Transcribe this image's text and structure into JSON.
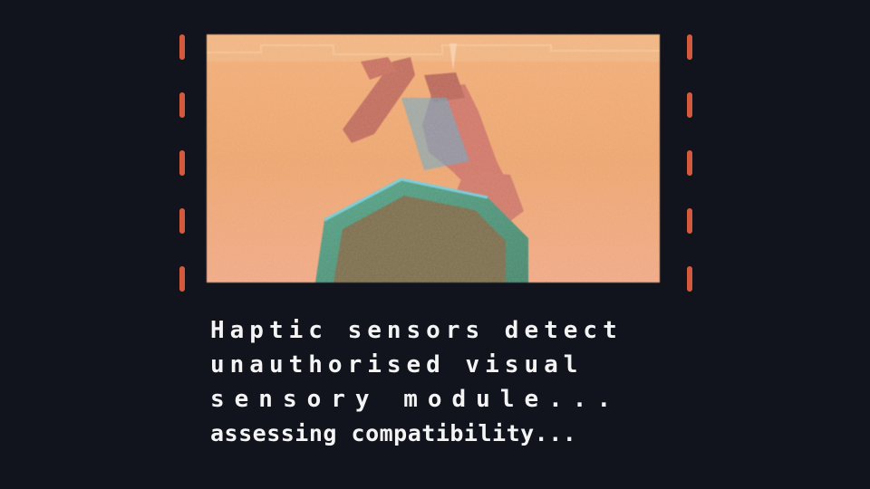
{
  "colors": {
    "background": "#11141d",
    "frame_dash": "#d35a3c",
    "scene_orange": "#e69b5c",
    "text": "#f4f4f4"
  },
  "scene": {
    "description_icons": [
      "robot-figure-icon",
      "hexagon-cylinder-icon"
    ]
  },
  "dialogue": {
    "line1": "Haptic sensors detect",
    "line2": "unauthorised visual",
    "line3": "sensory  module...",
    "line4": "assessing compatibility..."
  }
}
